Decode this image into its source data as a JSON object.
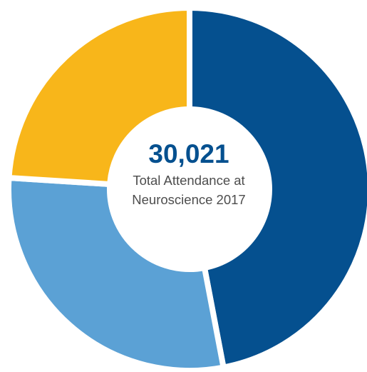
{
  "chart_data": {
    "type": "pie",
    "variant": "donut",
    "values": [
      47,
      29,
      24
    ],
    "colors": [
      "#05508f",
      "#5ba1d5",
      "#f8b61a"
    ],
    "start": "top",
    "direction": "clockwise",
    "center_value": "30,021",
    "center_caption_lines": [
      "Total Attendance at",
      "Neuroscience 2017"
    ]
  }
}
